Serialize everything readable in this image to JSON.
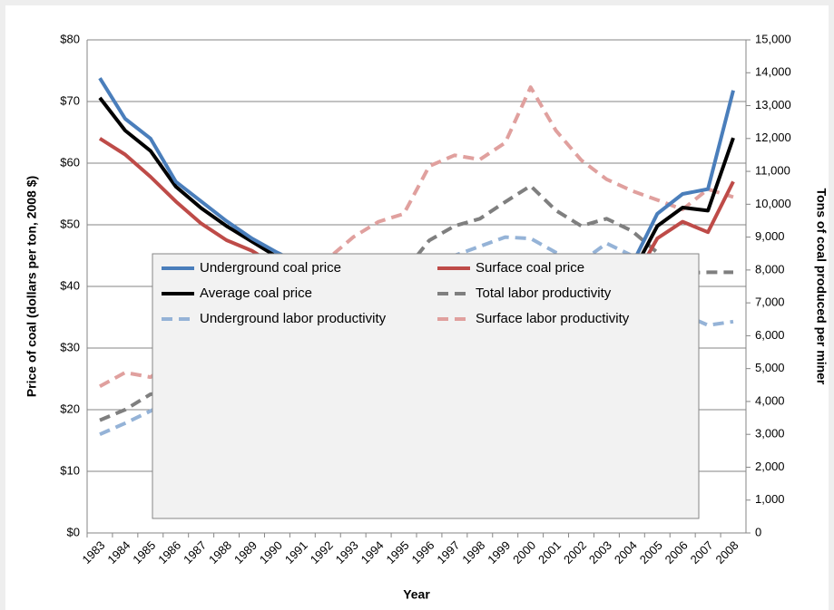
{
  "chart_data": {
    "type": "line",
    "x_label": "Year",
    "y_label": "Price of coal (dollars per ton, 2008 $)",
    "y2_label": "Tons  of coal produced per miner",
    "categories": [
      "1983",
      "1984",
      "1985",
      "1986",
      "1987",
      "1988",
      "1989",
      "1990",
      "1991",
      "1992",
      "1993",
      "1994",
      "1995",
      "1996",
      "1997",
      "1998",
      "1999",
      "2000",
      "2001",
      "2002",
      "2003",
      "2004",
      "2005",
      "2006",
      "2007",
      "2008"
    ],
    "ylim": [
      0,
      80
    ],
    "yticks": [
      {
        "value": 0,
        "label": "$0"
      },
      {
        "value": 10,
        "label": "$10"
      },
      {
        "value": 20,
        "label": "$20"
      },
      {
        "value": 30,
        "label": "$30"
      },
      {
        "value": 40,
        "label": "$40"
      },
      {
        "value": 50,
        "label": "$50"
      },
      {
        "value": 60,
        "label": "$60"
      },
      {
        "value": 70,
        "label": "$70"
      },
      {
        "value": 80,
        "label": "$80"
      }
    ],
    "y2lim": [
      0,
      15000
    ],
    "y2ticks": [
      0,
      {
        "value": 1000,
        "label": "1,000"
      },
      {
        "value": 2000,
        "label": "2,000"
      },
      {
        "value": 3000,
        "label": "3,000"
      },
      {
        "value": 4000,
        "label": "4,000"
      },
      {
        "value": 5000,
        "label": "5,000"
      },
      {
        "value": 6000,
        "label": "6,000"
      },
      {
        "value": 7000,
        "label": "7,000"
      },
      {
        "value": 8000,
        "label": "8,000"
      },
      {
        "value": 9000,
        "label": "9,000"
      },
      {
        "value": 10000,
        "label": "10,000"
      },
      {
        "value": 11000,
        "label": "11,000"
      },
      {
        "value": 12000,
        "label": "12,000"
      },
      {
        "value": 13000,
        "label": "13,000"
      },
      {
        "value": 14000,
        "label": "14,000"
      },
      {
        "value": 15000,
        "label": "15,000"
      }
    ],
    "grid": true,
    "series": [
      {
        "name": "Underground coal price",
        "color": "#4a7ebb",
        "dashed": false,
        "values": [
          73.8,
          67.2,
          64,
          57,
          53.8,
          50.6,
          47.8,
          45.5,
          43.5,
          41.6,
          40,
          39.7,
          39.8,
          38,
          37.1,
          36.8,
          34,
          33,
          35.2,
          37.7,
          36.8,
          43.5,
          51.8,
          55,
          55.8,
          71.8
        ]
      },
      {
        "name": "Surface coal price",
        "color": "#be4b48",
        "dashed": false,
        "values": [
          64,
          61.4,
          57.8,
          53.8,
          50.2,
          47.5,
          45.8,
          43.2,
          41.6,
          39,
          38.4,
          36.8,
          36.5,
          33.8,
          32,
          32.3,
          31.3,
          30.5,
          33.2,
          34.3,
          34.3,
          40.5,
          47.8,
          50.5,
          48.8,
          57
        ]
      },
      {
        "name": "Average coal price",
        "color": "#000000",
        "dashed": false,
        "values": [
          70.6,
          65.3,
          62,
          56.2,
          52.7,
          49.8,
          47.3,
          44.8,
          42.7,
          40.6,
          39.5,
          38.6,
          38.6,
          36.3,
          35.2,
          35,
          33,
          32,
          34.3,
          36.3,
          35.8,
          42,
          49.8,
          52.8,
          52.3,
          64.1
        ]
      },
      {
        "name": "Total labor productivity",
        "color": "#7f7f7f",
        "dashed": true,
        "axis": "y2",
        "values": [
          3430,
          3750,
          4220,
          4310,
          4780,
          5250,
          5720,
          6090,
          6320,
          6710,
          6990,
          7430,
          7930,
          8900,
          9340,
          9560,
          10070,
          10560,
          9810,
          9340,
          9560,
          9190,
          8530,
          7910,
          7930,
          7930
        ]
      },
      {
        "name": "Underground labor productivity",
        "color": "#95b3d7",
        "dashed": true,
        "axis": "y2",
        "values": [
          3000,
          3340,
          3710,
          4130,
          4590,
          4970,
          5440,
          5910,
          6060,
          6280,
          6470,
          6840,
          7280,
          8060,
          8440,
          8720,
          9000,
          8960,
          8530,
          8250,
          8810,
          8440,
          7410,
          6660,
          6320,
          6430
        ]
      },
      {
        "name": "Surface labor productivity",
        "color": "#e0a09e",
        "dashed": true,
        "axis": "y2",
        "values": [
          4460,
          4880,
          4740,
          5250,
          5720,
          6190,
          6840,
          7280,
          7740,
          8340,
          9000,
          9470,
          9710,
          11160,
          11490,
          11360,
          11870,
          13560,
          12240,
          11340,
          10760,
          10410,
          10130,
          9840,
          10460,
          10220
        ]
      }
    ]
  }
}
